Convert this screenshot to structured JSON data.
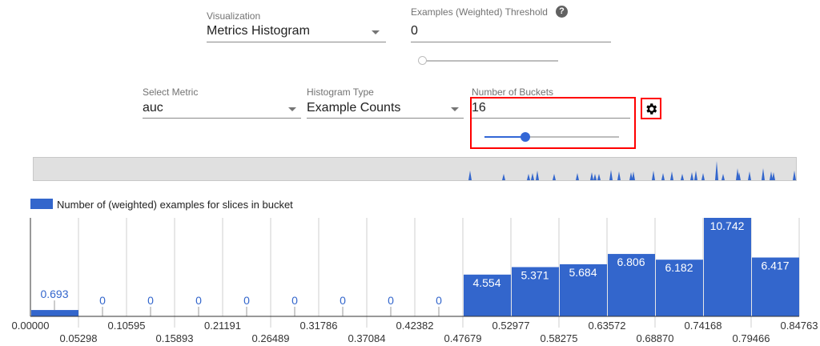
{
  "controls": {
    "visualization": {
      "label": "Visualization",
      "value": "Metrics Histogram"
    },
    "threshold": {
      "label": "Examples (Weighted) Threshold",
      "value": "0",
      "help_icon": "help-icon",
      "slider_fraction": 0
    },
    "metric": {
      "label": "Select Metric",
      "value": "auc"
    },
    "histogram_type": {
      "label": "Histogram Type",
      "value": "Example Counts"
    },
    "buckets": {
      "label": "Number of Buckets",
      "value": "16",
      "slider_fraction": 0.3
    },
    "settings_icon": "gear-icon"
  },
  "colors": {
    "bar": "#3366cc",
    "highlight": "#ff0000"
  },
  "chart_data": {
    "type": "bar",
    "legend": "Number of (weighted) examples for slices in bucket",
    "legend_position": "top-left",
    "edges": [
      "0.00000",
      "0.05298",
      "0.10595",
      "0.15893",
      "0.21191",
      "0.26489",
      "0.31786",
      "0.37084",
      "0.42382",
      "0.47679",
      "0.52977",
      "0.58275",
      "0.63572",
      "0.68870",
      "0.74168",
      "0.79466",
      "0.84763"
    ],
    "values": [
      0.693,
      0,
      0,
      0,
      0,
      0,
      0,
      0,
      0,
      4.554,
      5.371,
      5.684,
      6.806,
      6.182,
      10.742,
      6.417
    ],
    "labels": [
      "0.693",
      "0",
      "0",
      "0",
      "0",
      "0",
      "0",
      "0",
      "0",
      "4.554",
      "5.371",
      "5.684",
      "6.806",
      "6.182",
      "10.742",
      "6.417"
    ],
    "ylim": [
      0,
      10.742
    ],
    "grid": true
  }
}
